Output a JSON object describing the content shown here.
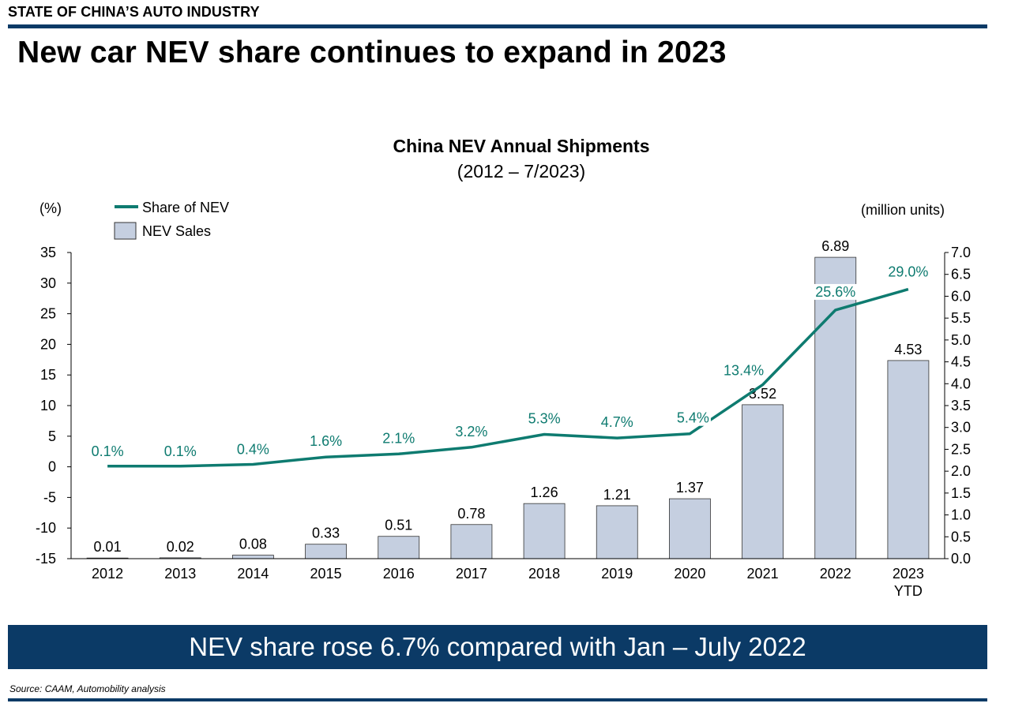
{
  "header": {
    "section_label": "STATE OF CHINA’S AUTO INDUSTRY",
    "headline": "New car NEV share continues to expand in 2023"
  },
  "footer": {
    "banner_text": "NEV share rose 6.7% compared with Jan – July 2022",
    "source": "Source: CAAM, Automobility analysis"
  },
  "colors": {
    "brand_navy": "#0b3a66",
    "share_line": "#0e7b70",
    "bar_fill": "#c5cfe0",
    "bar_stroke": "#333333"
  },
  "chart_data": {
    "type": "bar",
    "title": "China NEV Annual Shipments",
    "subtitle": "(2012 – 7/2023)",
    "categories": [
      "2012",
      "2013",
      "2014",
      "2015",
      "2016",
      "2017",
      "2018",
      "2019",
      "2020",
      "2021",
      "2022",
      "2023\nYTD"
    ],
    "y_left": {
      "label": "(%)",
      "min": -15,
      "max": 35,
      "step": 5
    },
    "y_right": {
      "label": "(million units)",
      "min": 0,
      "max": 7,
      "step": 0.5
    },
    "legend_position": "top-left",
    "grid": false,
    "series": [
      {
        "name": "NEV Sales",
        "type": "bar",
        "axis": "right",
        "values": [
          0.01,
          0.02,
          0.08,
          0.33,
          0.51,
          0.78,
          1.26,
          1.21,
          1.37,
          3.52,
          6.89,
          4.53
        ],
        "labels": [
          "0.01",
          "0.02",
          "0.08",
          "0.33",
          "0.51",
          "0.78",
          "1.26",
          "1.21",
          "1.37",
          "3.52",
          "6.89",
          "4.53"
        ]
      },
      {
        "name": "Share of NEV",
        "type": "line",
        "axis": "left",
        "values": [
          0.1,
          0.1,
          0.4,
          1.6,
          2.1,
          3.2,
          5.3,
          4.7,
          5.4,
          13.4,
          25.6,
          29.0
        ],
        "labels": [
          "0.1%",
          "0.1%",
          "0.4%",
          "1.6%",
          "2.1%",
          "3.2%",
          "5.3%",
          "4.7%",
          "5.4%",
          "13.4%",
          "25.6%",
          "29.0%"
        ]
      }
    ]
  }
}
